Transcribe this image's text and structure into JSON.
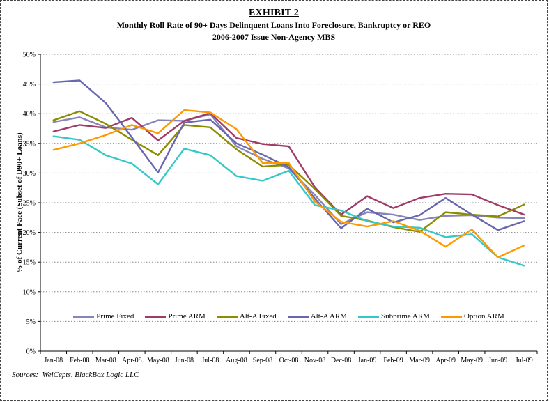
{
  "figure": {
    "title": "EXHIBIT 2",
    "subtitle1": "Monthly Roll Rate of 90+ Days Delinquent Loans Into Foreclosure, Bankruptcy or REO",
    "subtitle2": "2006-2007 Issue Non-Agency MBS",
    "source_note": "Sources:  WeiCepts, BlackBox Logic LLC"
  },
  "chart_data": {
    "type": "line",
    "title": "Monthly Roll Rate of 90+ Days Delinquent Loans Into Foreclosure, Bankruptcy or REO (2006-2007 Issue Non-Agency MBS)",
    "xlabel": "",
    "ylabel": "% of Current Face (Subset of D90+ Loans)",
    "ylim": [
      0,
      50
    ],
    "ytick_values": [
      0,
      5,
      10,
      15,
      20,
      25,
      30,
      35,
      40,
      45,
      50
    ],
    "ytick_labels": [
      "0%",
      "5%",
      "10%",
      "15%",
      "20%",
      "25%",
      "30%",
      "35%",
      "40%",
      "45%",
      "50%"
    ],
    "grid": "horizontal-dotted",
    "legend_position": "bottom-inside",
    "categories": [
      "Jan-08",
      "Feb-08",
      "Mar-08",
      "Apr-08",
      "May-08",
      "Jun-08",
      "Jul-08",
      "Aug-08",
      "Sep-08",
      "Oct-08",
      "Nov-08",
      "Dec-08",
      "Jan-09",
      "Feb-09",
      "Mar-09",
      "Apr-09",
      "May-09",
      "Jun-09",
      "Jul-09"
    ],
    "series": [
      {
        "name": "Prime Fixed",
        "color": "#8585B8",
        "values": [
          38.6,
          39.4,
          37.7,
          37.3,
          38.9,
          38.8,
          39.9,
          34.5,
          32.4,
          30.8,
          26.3,
          21.4,
          23.4,
          23.0,
          22.1,
          22.8,
          22.9,
          22.5,
          22.4
        ]
      },
      {
        "name": "Prime ARM",
        "color": "#A03A68",
        "values": [
          37.0,
          38.1,
          37.6,
          39.3,
          35.5,
          38.8,
          40.1,
          35.9,
          34.9,
          34.5,
          27.6,
          23.0,
          26.1,
          24.1,
          25.8,
          26.5,
          26.4,
          24.6,
          23.0
        ]
      },
      {
        "name": "Alt-A Fixed",
        "color": "#8C8C00",
        "values": [
          38.9,
          40.4,
          38.3,
          35.6,
          33.0,
          38.1,
          37.7,
          34.0,
          31.1,
          31.4,
          27.3,
          22.8,
          22.0,
          20.9,
          20.1,
          23.4,
          23.0,
          22.7,
          24.7
        ]
      },
      {
        "name": "Alt-A ARM",
        "color": "#6667AE",
        "values": [
          45.3,
          45.6,
          41.8,
          36.0,
          30.1,
          38.5,
          39.0,
          35.0,
          33.1,
          31.0,
          25.7,
          20.7,
          24.0,
          21.7,
          22.9,
          25.8,
          23.0,
          20.4,
          21.9
        ]
      },
      {
        "name": "Subprime ARM",
        "color": "#35C8C8",
        "values": [
          36.2,
          35.6,
          33.0,
          31.6,
          28.1,
          34.1,
          33.0,
          29.5,
          28.7,
          30.4,
          24.6,
          23.7,
          21.9,
          21.0,
          20.8,
          19.2,
          19.7,
          15.8,
          14.4
        ]
      },
      {
        "name": "Option ARM",
        "color": "#FF9900",
        "values": [
          33.9,
          35.0,
          36.4,
          38.1,
          36.7,
          40.6,
          40.2,
          37.4,
          31.7,
          31.7,
          25.2,
          21.8,
          21.0,
          21.9,
          20.3,
          17.6,
          20.5,
          15.8,
          17.8
        ]
      }
    ]
  }
}
